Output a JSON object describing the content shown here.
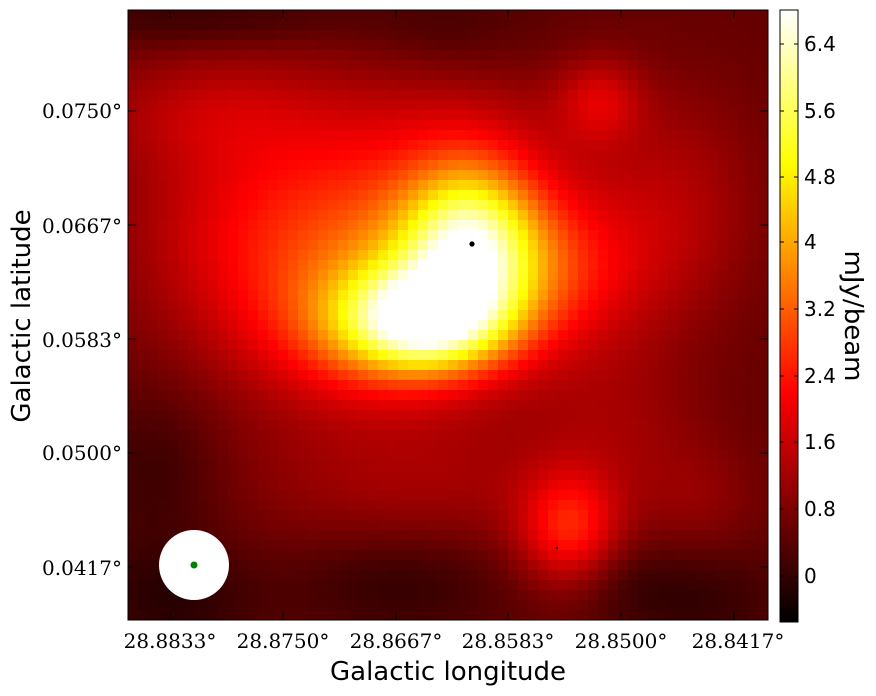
{
  "chart_data": {
    "type": "heatmap",
    "title": "",
    "xlabel": "Galactic longitude",
    "ylabel": "Galactic latitude",
    "x_ticks": [
      "28.8833°",
      "28.8750°",
      "28.8667°",
      "28.8583°",
      "28.8500°",
      "28.8417°"
    ],
    "y_ticks": [
      "0.0750°",
      "0.0667°",
      "0.0583°",
      "0.0500°",
      "0.0417°"
    ],
    "colorbar": {
      "label": "mJy/beam",
      "colormap": "hot",
      "range": [
        -0.45,
        6.8
      ],
      "ticks": [
        "0",
        "0.8",
        "1.6",
        "2.4",
        "3.2",
        "4",
        "4.8",
        "5.6",
        "6.4"
      ]
    },
    "beam": {
      "shape": "circle",
      "color": "#ffffff",
      "center_color": "#008000"
    },
    "marker": {
      "color": "#000000",
      "shape": "dot"
    }
  }
}
